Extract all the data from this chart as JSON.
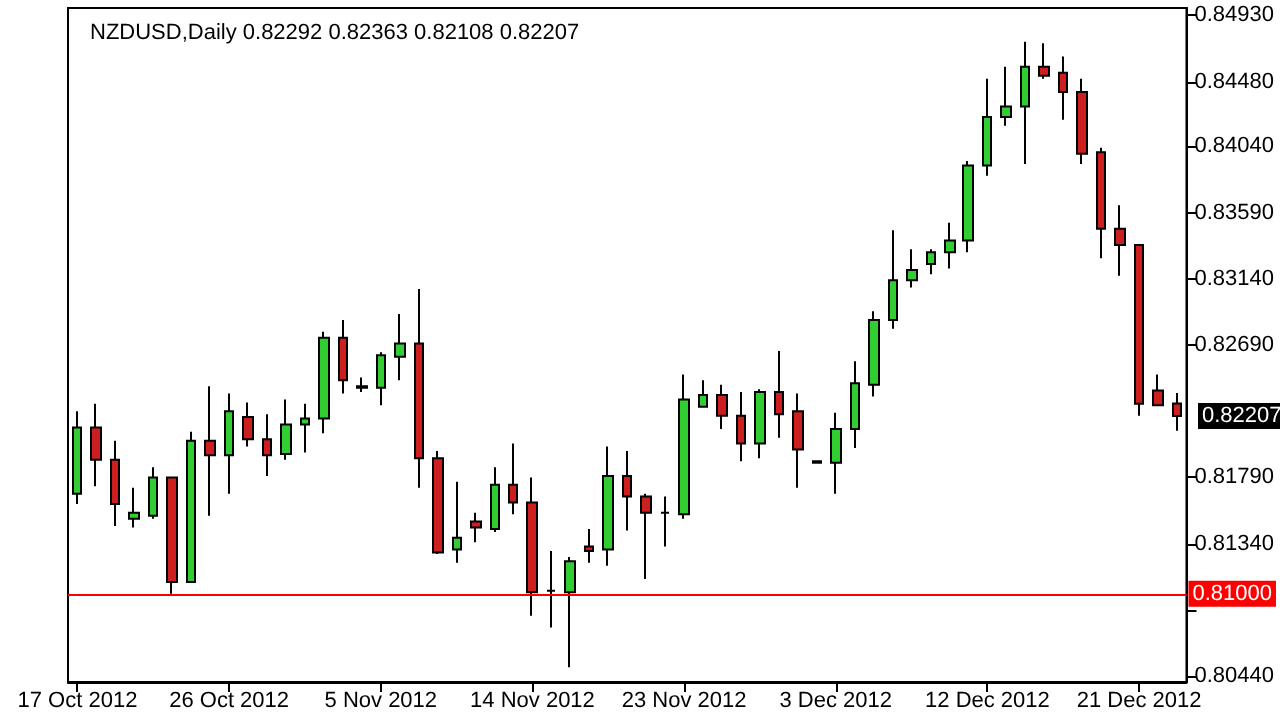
{
  "chart_data": {
    "type": "candlestick",
    "title": "NZDUSD,Daily 0.82292 0.82363 0.82108 0.82207",
    "categories": [
      "17 Oct 2012",
      null,
      null,
      null,
      null,
      null,
      null,
      null,
      "26 Oct 2012",
      null,
      null,
      null,
      null,
      null,
      null,
      null,
      "5 Nov 2012",
      null,
      null,
      null,
      null,
      null,
      null,
      null,
      "14 Nov 2012",
      null,
      null,
      null,
      null,
      null,
      null,
      null,
      "23 Nov 2012",
      null,
      null,
      null,
      null,
      null,
      null,
      null,
      "3 Dec 2012",
      null,
      null,
      null,
      null,
      null,
      null,
      null,
      "12 Dec 2012",
      null,
      null,
      null,
      null,
      null,
      null,
      null,
      "21 Dec 2012",
      null,
      null
    ],
    "ohlc": [
      [
        0.8168,
        0.8224,
        0.8161,
        0.8213
      ],
      [
        0.8213,
        0.8229,
        0.8173,
        0.8191
      ],
      [
        0.8191,
        0.8204,
        0.8146,
        0.8161
      ],
      [
        0.8151,
        0.8172,
        0.8145,
        0.8155
      ],
      [
        0.8153,
        0.8186,
        0.8151,
        0.8179
      ],
      [
        0.8179,
        0.8179,
        0.81,
        0.8108
      ],
      [
        0.8108,
        0.821,
        0.8108,
        0.8204
      ],
      [
        0.8204,
        0.8241,
        0.8153,
        0.8194
      ],
      [
        0.8194,
        0.8236,
        0.8168,
        0.8224
      ],
      [
        0.822,
        0.823,
        0.82,
        0.8205
      ],
      [
        0.8205,
        0.8222,
        0.818,
        0.8194
      ],
      [
        0.8195,
        0.8232,
        0.8191,
        0.8215
      ],
      [
        0.8215,
        0.8229,
        0.8196,
        0.8219
      ],
      [
        0.8219,
        0.8278,
        0.8209,
        0.8274
      ],
      [
        0.8274,
        0.8286,
        0.8236,
        0.8245
      ],
      [
        0.8241,
        0.8247,
        0.8237,
        0.824
      ],
      [
        0.824,
        0.8264,
        0.8228,
        0.8262
      ],
      [
        0.8261,
        0.829,
        0.8245,
        0.827
      ],
      [
        0.827,
        0.8307,
        0.8172,
        0.8192
      ],
      [
        0.8192,
        0.8197,
        0.8127,
        0.8128
      ],
      [
        0.813,
        0.8176,
        0.8121,
        0.8138
      ],
      [
        0.8149,
        0.8155,
        0.8135,
        0.8145
      ],
      [
        0.8144,
        0.8186,
        0.8142,
        0.8174
      ],
      [
        0.8174,
        0.8202,
        0.8154,
        0.8162
      ],
      [
        0.8162,
        0.8179,
        0.8085,
        0.8101
      ],
      [
        0.8102,
        0.8129,
        0.8077,
        0.8102
      ],
      [
        0.8101,
        0.8125,
        0.805,
        0.8122
      ],
      [
        0.8132,
        0.8144,
        0.8121,
        0.8129
      ],
      [
        0.813,
        0.82,
        0.8119,
        0.818
      ],
      [
        0.818,
        0.8197,
        0.8143,
        0.8166
      ],
      [
        0.8166,
        0.8168,
        0.811,
        0.8155
      ],
      [
        0.8155,
        0.8166,
        0.8132,
        0.8155
      ],
      [
        0.8154,
        0.8249,
        0.8151,
        0.8232
      ],
      [
        0.8227,
        0.8245,
        0.8227,
        0.8235
      ],
      [
        0.8235,
        0.8242,
        0.8212,
        0.8221
      ],
      [
        0.8221,
        0.8237,
        0.819,
        0.8202
      ],
      [
        0.8202,
        0.8239,
        0.8192,
        0.8237
      ],
      [
        0.8237,
        0.8265,
        0.8206,
        0.8222
      ],
      [
        0.8224,
        0.8236,
        0.8172,
        0.8198
      ],
      [
        0.819,
        0.819,
        0.8189,
        0.8189
      ],
      [
        0.8189,
        0.8223,
        0.8168,
        0.8212
      ],
      [
        0.8212,
        0.8258,
        0.8199,
        0.8243
      ],
      [
        0.8242,
        0.8292,
        0.8234,
        0.8286
      ],
      [
        0.8286,
        0.8347,
        0.828,
        0.8313
      ],
      [
        0.8313,
        0.8334,
        0.8308,
        0.832
      ],
      [
        0.8324,
        0.8334,
        0.8317,
        0.8332
      ],
      [
        0.8332,
        0.8352,
        0.8321,
        0.834
      ],
      [
        0.834,
        0.8394,
        0.8332,
        0.8391
      ],
      [
        0.8391,
        0.845,
        0.8384,
        0.8424
      ],
      [
        0.8424,
        0.8458,
        0.8418,
        0.8431
      ],
      [
        0.8431,
        0.8475,
        0.8392,
        0.8458
      ],
      [
        0.8458,
        0.8474,
        0.845,
        0.8452
      ],
      [
        0.8454,
        0.8465,
        0.8422,
        0.8441
      ],
      [
        0.8441,
        0.845,
        0.8392,
        0.8399
      ],
      [
        0.84,
        0.8403,
        0.8328,
        0.8348
      ],
      [
        0.8348,
        0.8364,
        0.8316,
        0.8337
      ],
      [
        0.8337,
        0.8337,
        0.8221,
        0.8229
      ],
      [
        0.8238,
        0.8249,
        0.8228,
        0.8228
      ],
      [
        0.82292,
        0.82363,
        0.82108,
        0.82207
      ]
    ],
    "colors": [
      "#32cd32",
      "#cc1f1f",
      "#cc1f1f",
      "#32cd32",
      "#32cd32",
      "#cc1f1f",
      "#32cd32",
      "#cc1f1f",
      "#32cd32",
      "#cc1f1f",
      "#cc1f1f",
      "#32cd32",
      "#32cd32",
      "#32cd32",
      "#cc1f1f",
      "#000000",
      "#32cd32",
      "#32cd32",
      "#cc1f1f",
      "#cc1f1f",
      "#32cd32",
      "#cc1f1f",
      "#32cd32",
      "#cc1f1f",
      "#cc1f1f",
      "#000000",
      "#32cd32",
      "#cc1f1f",
      "#32cd32",
      "#cc1f1f",
      "#cc1f1f",
      "#000000",
      "#32cd32",
      "#32cd32",
      "#cc1f1f",
      "#cc1f1f",
      "#32cd32",
      "#cc1f1f",
      "#cc1f1f",
      "#000000",
      "#32cd32",
      "#32cd32",
      "#32cd32",
      "#32cd32",
      "#32cd32",
      "#32cd32",
      "#32cd32",
      "#32cd32",
      "#32cd32",
      "#32cd32",
      "#32cd32",
      "#cc1f1f",
      "#cc1f1f",
      "#cc1f1f",
      "#cc1f1f",
      "#cc1f1f",
      "#cc1f1f",
      "#cc1f1f",
      "#cc1f1f"
    ],
    "ylim": [
      0.804,
      0.8498
    ],
    "yticks": [
      {
        "value": 0.8044,
        "label": "0.80440"
      },
      {
        "value": 0.8089,
        "label": null
      },
      {
        "value": 0.8134,
        "label": "0.81340"
      },
      {
        "value": 0.8179,
        "label": "0.81790"
      },
      {
        "value": 0.8269,
        "label": "0.82690"
      },
      {
        "value": 0.8314,
        "label": "0.83140"
      },
      {
        "value": 0.8359,
        "label": "0.83590"
      },
      {
        "value": 0.8404,
        "label": "0.84040"
      },
      {
        "value": 0.8448,
        "label": "0.84480"
      },
      {
        "value": 0.8493,
        "label": "0.84930"
      }
    ],
    "ref_lines": [
      {
        "axis": "y",
        "value": 0.81,
        "label": "0.81000",
        "color": "#ff0000"
      }
    ],
    "annotations": [
      "0.82207"
    ],
    "grid": false
  }
}
